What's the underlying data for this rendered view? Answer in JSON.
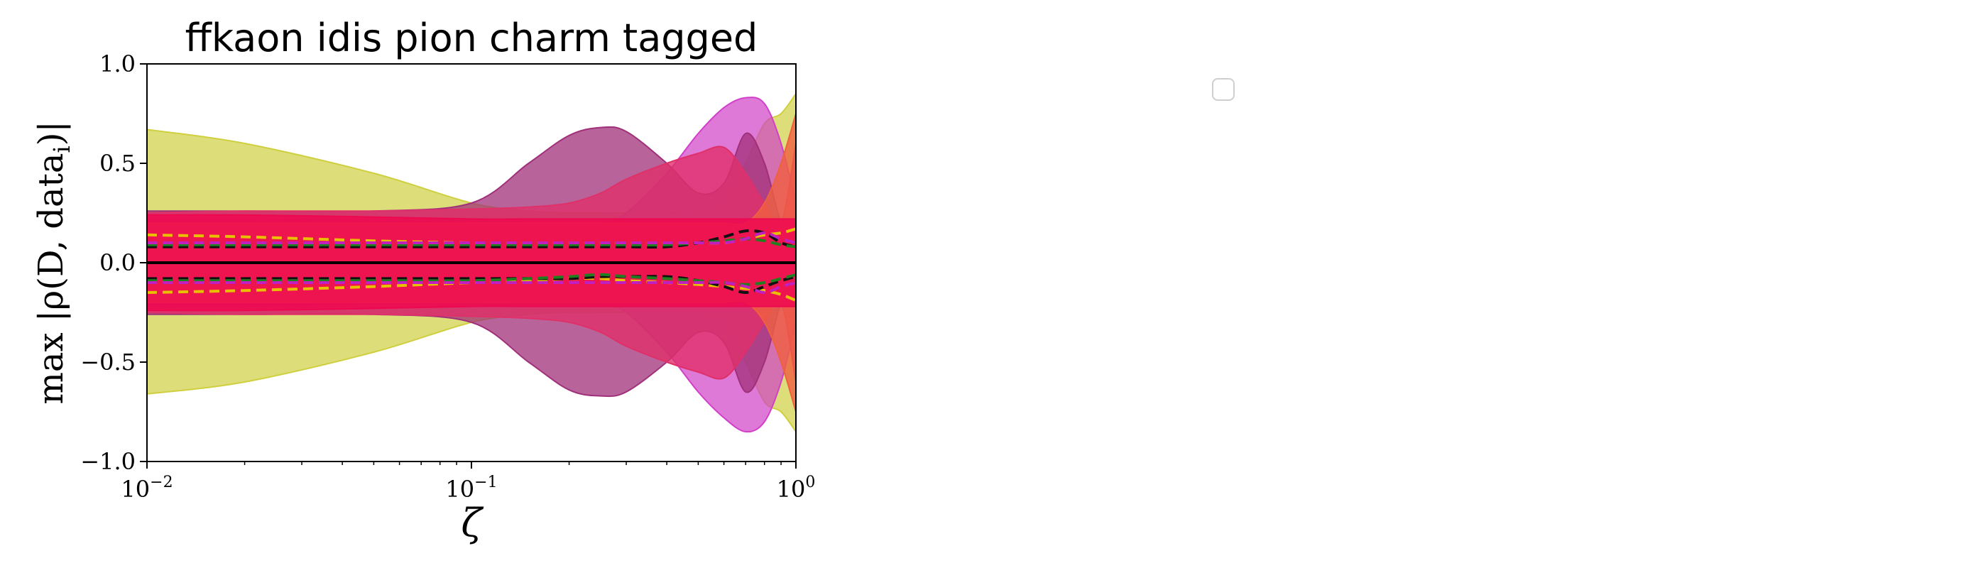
{
  "chart_data": {
    "type": "area",
    "title": "ffkaon idis pion charm tagged",
    "xlabel": "ζ",
    "ylabel_prefix": "max |ρ(D, data",
    "ylabel_sub": "i",
    "ylabel_suffix": ")|",
    "xscale": "log",
    "xlim": [
      0.01,
      1.0
    ],
    "ylim": [
      -1.0,
      1.0
    ],
    "x_ticks": [
      {
        "base": "10",
        "exp": "−2"
      },
      {
        "base": "10",
        "exp": "−1"
      },
      {
        "base": "10",
        "exp": "0"
      }
    ],
    "y_ticks": [
      "1.0",
      "0.5",
      "0.0",
      "−0.5",
      "−1.0"
    ],
    "y_tick_values": [
      1.0,
      0.5,
      0.0,
      -0.5,
      -1.0
    ],
    "grid": false,
    "legend": "empty, upper-right of figure",
    "x": [
      0.01,
      0.02,
      0.05,
      0.1,
      0.15,
      0.2,
      0.25,
      0.3,
      0.4,
      0.5,
      0.6,
      0.7,
      0.8,
      0.9,
      1.0
    ],
    "bands": [
      {
        "color": "#cfcf40",
        "opacity": 0.7,
        "upper": [
          0.67,
          0.6,
          0.45,
          0.3,
          0.26,
          0.25,
          0.25,
          0.25,
          0.25,
          0.25,
          0.3,
          0.5,
          0.7,
          0.75,
          0.85
        ],
        "lower": [
          -0.66,
          -0.6,
          -0.45,
          -0.3,
          -0.26,
          -0.25,
          -0.25,
          -0.25,
          -0.25,
          -0.25,
          -0.3,
          -0.5,
          -0.7,
          -0.75,
          -0.85
        ]
      },
      {
        "color": "#d040c8",
        "opacity": 0.7,
        "upper": [
          0.22,
          0.22,
          0.21,
          0.2,
          0.2,
          0.2,
          0.2,
          0.25,
          0.45,
          0.65,
          0.78,
          0.83,
          0.8,
          0.6,
          0.3
        ],
        "lower": [
          -0.22,
          -0.22,
          -0.21,
          -0.2,
          -0.2,
          -0.2,
          -0.2,
          -0.25,
          -0.45,
          -0.65,
          -0.78,
          -0.85,
          -0.8,
          -0.6,
          -0.3
        ]
      },
      {
        "color": "#a0307a",
        "opacity": 0.75,
        "upper": [
          0.26,
          0.26,
          0.26,
          0.3,
          0.5,
          0.64,
          0.68,
          0.66,
          0.5,
          0.35,
          0.4,
          0.65,
          0.5,
          0.2,
          0.1
        ],
        "lower": [
          -0.26,
          -0.26,
          -0.26,
          -0.3,
          -0.5,
          -0.64,
          -0.67,
          -0.65,
          -0.5,
          -0.35,
          -0.4,
          -0.65,
          -0.5,
          -0.2,
          -0.1
        ]
      },
      {
        "color": "#e0306a",
        "opacity": 0.8,
        "upper": [
          0.25,
          0.26,
          0.26,
          0.27,
          0.28,
          0.3,
          0.35,
          0.42,
          0.5,
          0.55,
          0.58,
          0.45,
          0.3,
          0.2,
          0.6
        ],
        "lower": [
          -0.25,
          -0.26,
          -0.26,
          -0.27,
          -0.28,
          -0.3,
          -0.35,
          -0.42,
          -0.5,
          -0.55,
          -0.58,
          -0.45,
          -0.3,
          -0.2,
          -0.6
        ]
      },
      {
        "color": "#f06040",
        "opacity": 0.8,
        "upper": [
          0.2,
          0.2,
          0.2,
          0.2,
          0.2,
          0.2,
          0.2,
          0.2,
          0.2,
          0.2,
          0.2,
          0.2,
          0.3,
          0.5,
          0.75
        ],
        "lower": [
          -0.2,
          -0.2,
          -0.2,
          -0.2,
          -0.2,
          -0.2,
          -0.2,
          -0.2,
          -0.2,
          -0.2,
          -0.2,
          -0.2,
          -0.3,
          -0.5,
          -0.75
        ]
      },
      {
        "color": "#ee0850",
        "opacity": 0.85,
        "upper": [
          0.24,
          0.24,
          0.23,
          0.22,
          0.22,
          0.22,
          0.22,
          0.22,
          0.22,
          0.22,
          0.22,
          0.22,
          0.22,
          0.22,
          0.22
        ],
        "lower": [
          -0.24,
          -0.24,
          -0.23,
          -0.22,
          -0.22,
          -0.22,
          -0.22,
          -0.22,
          -0.22,
          -0.22,
          -0.22,
          -0.22,
          -0.22,
          -0.22,
          -0.22
        ]
      }
    ],
    "lines": [
      {
        "color": "#e8c000",
        "dash": "14,8",
        "y": [
          0.14,
          0.13,
          0.11,
          0.1,
          0.1,
          0.1,
          0.1,
          0.1,
          0.1,
          0.1,
          0.1,
          0.12,
          0.14,
          0.15,
          0.17
        ]
      },
      {
        "color": "#e8c000",
        "dash": "14,8",
        "y": [
          -0.15,
          -0.14,
          -0.12,
          -0.1,
          -0.09,
          -0.08,
          -0.08,
          -0.09,
          -0.1,
          -0.11,
          -0.12,
          -0.13,
          -0.14,
          -0.16,
          -0.19
        ]
      },
      {
        "color": "#111111",
        "dash": "14,8",
        "y": [
          0.08,
          0.08,
          0.08,
          0.08,
          0.08,
          0.08,
          0.08,
          0.08,
          0.08,
          0.1,
          0.13,
          0.16,
          0.15,
          0.1,
          0.08
        ]
      },
      {
        "color": "#111111",
        "dash": "14,8",
        "y": [
          -0.08,
          -0.08,
          -0.08,
          -0.08,
          -0.08,
          -0.08,
          -0.07,
          -0.07,
          -0.07,
          -0.09,
          -0.12,
          -0.15,
          -0.12,
          -0.09,
          -0.07
        ]
      },
      {
        "color": "#208020",
        "dash": "14,8",
        "y": [
          0.09,
          0.09,
          0.09,
          0.09,
          0.09,
          0.09,
          0.09,
          0.09,
          0.09,
          0.1,
          0.11,
          0.12,
          0.11,
          0.09,
          0.08
        ]
      },
      {
        "color": "#208020",
        "dash": "14,8",
        "y": [
          -0.09,
          -0.09,
          -0.09,
          -0.09,
          -0.08,
          -0.07,
          -0.06,
          -0.07,
          -0.08,
          -0.09,
          -0.1,
          -0.11,
          -0.1,
          -0.08,
          -0.06
        ]
      },
      {
        "color": "#c020c0",
        "dash": "14,8",
        "y": [
          0.1,
          0.1,
          0.1,
          0.1,
          0.1,
          0.1,
          0.1,
          0.1,
          0.1,
          0.1,
          0.1,
          0.12,
          0.15,
          0.12,
          0.1
        ]
      },
      {
        "color": "#c020c0",
        "dash": "14,8",
        "y": [
          -0.1,
          -0.1,
          -0.1,
          -0.1,
          -0.1,
          -0.1,
          -0.1,
          -0.1,
          -0.1,
          -0.1,
          -0.1,
          -0.12,
          -0.15,
          -0.12,
          -0.1
        ]
      }
    ]
  }
}
